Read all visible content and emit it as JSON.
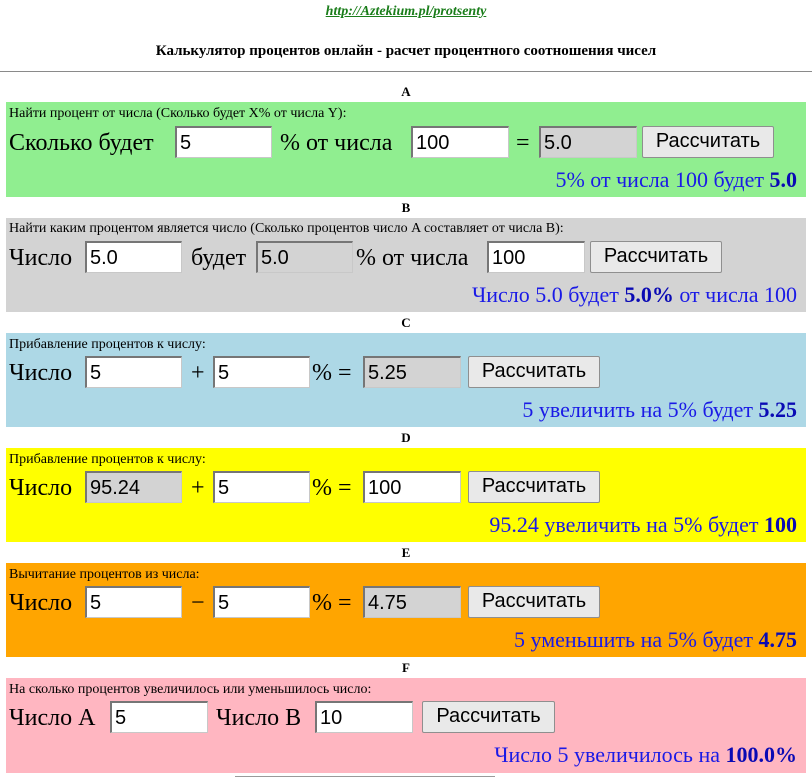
{
  "header": {
    "link_text": "http://Aztekium.pl/protsenty",
    "title": "Калькулятор процентов онлайн - расчет процентного соотношения чисел"
  },
  "colors": {
    "a": "#90ee90",
    "b": "#d3d3d3",
    "c": "#add8e6",
    "d": "#ffff00",
    "e": "#ffa500",
    "f": "#ffb6c1",
    "result_text": "#1a1ae6",
    "link": "#1a7d1a"
  },
  "button_label": "Рассчитать",
  "sections": {
    "a": {
      "letter": "A",
      "description": "Найти процент от числа (Сколько будет X% от числа Y):",
      "label1": "Сколько будет",
      "label2": "% от числа",
      "label3": "=",
      "input1": "5",
      "input2": "100",
      "output": "5.0",
      "result_pre": "5% от числа 100 будет ",
      "result_bold": "5.0",
      "result_post": ""
    },
    "b": {
      "letter": "B",
      "description": "Найти каким процентом является число (Сколько процентов число A составляет от числа B):",
      "label1": "Число",
      "label2": "будет",
      "label3": "% от числа",
      "input1": "5.0",
      "output": "5.0",
      "input2": "100",
      "result_pre": "Число 5.0 будет ",
      "result_bold": "5.0%",
      "result_post": " от числа 100"
    },
    "c": {
      "letter": "C",
      "description": "Прибавление процентов к числу:",
      "label1": "Число",
      "label2": "+",
      "label3": "% =",
      "input1": "5",
      "input2": "5",
      "output": "5.25",
      "result_pre": "5 увеличить на 5% будет ",
      "result_bold": "5.25",
      "result_post": ""
    },
    "d": {
      "letter": "D",
      "description": "Прибавление процентов к числу:",
      "label1": "Число",
      "label2": "+",
      "label3": "% =",
      "output": "95.24",
      "input1": "5",
      "input2": "100",
      "result_pre": "95.24 увеличить на 5% будет ",
      "result_bold": "100",
      "result_post": ""
    },
    "e": {
      "letter": "E",
      "description": "Вычитание процентов из числа:",
      "label1": "Число",
      "label2": "−",
      "label3": "% =",
      "input1": "5",
      "input2": "5",
      "output": "4.75",
      "result_pre": "5 уменьшить на 5% будет ",
      "result_bold": "4.75",
      "result_post": ""
    },
    "f": {
      "letter": "F",
      "description": "На сколько процентов увеличилось или уменьшилось число:",
      "label1": "Число A",
      "label2": "Число B",
      "input1": "5",
      "input2": "10",
      "result_pre": "Число 5 увеличилось на ",
      "result_bold": "100.0%",
      "result_post": ""
    }
  }
}
